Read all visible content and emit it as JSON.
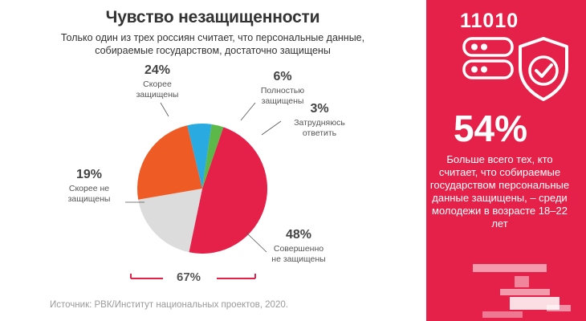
{
  "title": "Чувство незащищенности",
  "subtitle": "Только один из трех россиян считает, что персональные данные, собираемые государством, достаточно защищены",
  "chart_data": {
    "type": "pie",
    "title": "Чувство незащищенности",
    "slices": [
      {
        "label": "Совершенно не защищены",
        "value": 48,
        "display": "48%",
        "color": "#e5214a"
      },
      {
        "label": "Скорее не защищены",
        "value": 19,
        "display": "19%",
        "color": "#dcdcdc"
      },
      {
        "label": "Скорее защищены",
        "value": 24,
        "display": "24%",
        "color": "#ef5b24"
      },
      {
        "label": "Полностью защищены",
        "value": 6,
        "display": "6%",
        "color": "#29abe2"
      },
      {
        "label": "Затрудняюсь ответить",
        "value": 3,
        "display": "3%",
        "color": "#5cb848"
      }
    ],
    "bracket_label": "67%",
    "bracket_color": "#e5214a"
  },
  "source": "Источник: РВК/Институт национальных проектов, 2020.",
  "panel": {
    "background": "#e5214a",
    "binary": "11010",
    "icon": "server-shield-check-icon",
    "highlight_value": "54%",
    "highlight_text": "Больше всего тех, кто считает, что собираемые государством персональные данные защищены, – среди молодежи в возрасте 18–22 лет"
  }
}
